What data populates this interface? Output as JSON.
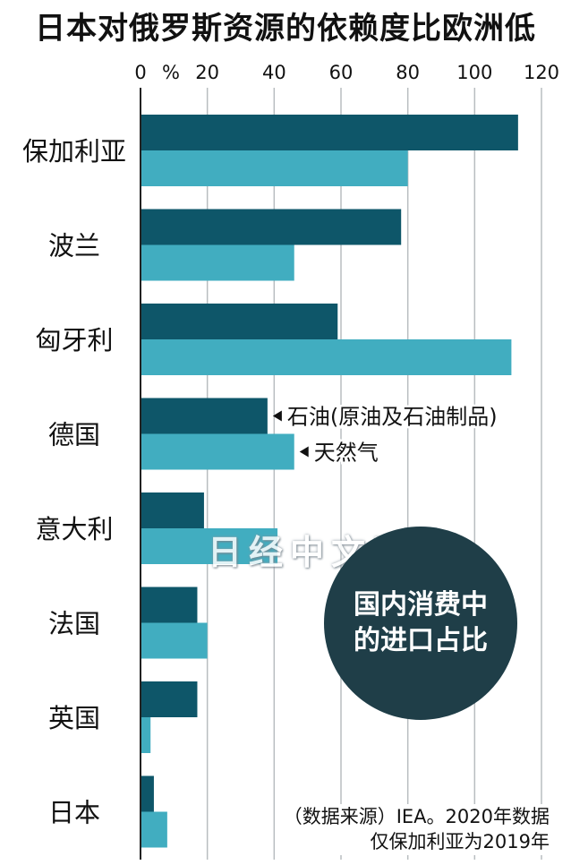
{
  "chart_data": {
    "type": "bar",
    "orientation": "horizontal",
    "title": "日本对俄罗斯资源的依赖度比欧洲低",
    "unit_label": "%",
    "categories": [
      "保加利亚",
      "波兰",
      "匈牙利",
      "德国",
      "意大利",
      "法国",
      "英国",
      "日本"
    ],
    "series": [
      {
        "name": "石油(原油及石油制品)",
        "color": "#0e5669",
        "values": [
          113,
          78,
          59,
          38,
          19,
          17,
          17,
          4
        ]
      },
      {
        "name": "天然气",
        "color": "#41adc0",
        "values": [
          80,
          46,
          111,
          46,
          41,
          20,
          3,
          8
        ]
      }
    ],
    "xlim": [
      0,
      120
    ],
    "xticks": [
      0,
      20,
      40,
      60,
      80,
      100,
      120
    ],
    "grid": true,
    "legend_placement": "inline next to 德国 bars"
  },
  "badge": {
    "line1": "国内消费中",
    "line2": "的进口占比"
  },
  "watermark": "日经中文网",
  "source": {
    "line1": "（数据来源）IEA。2020年数据",
    "line2": "仅保加利亚为2019年"
  }
}
